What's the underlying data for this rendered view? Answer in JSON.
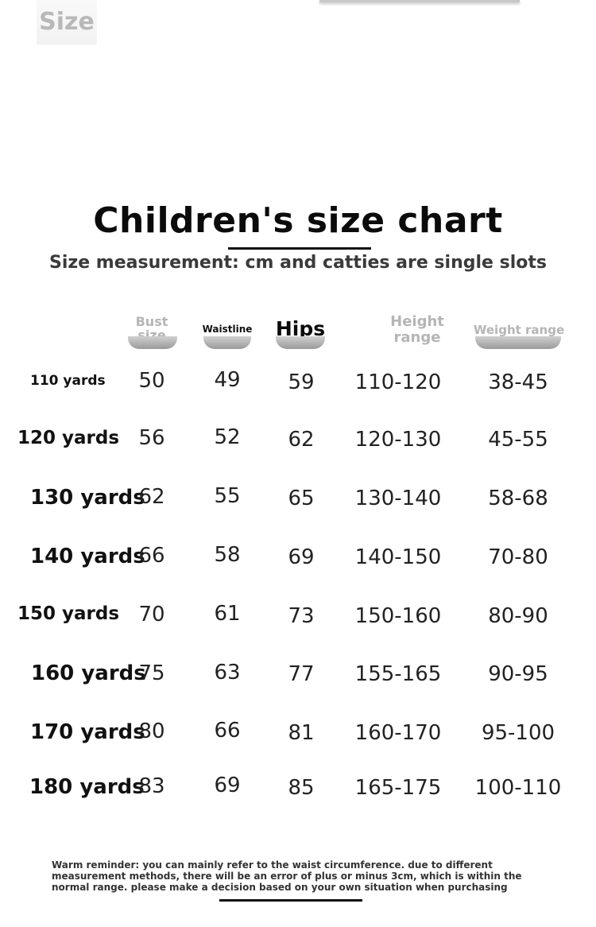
{
  "title": "Children's size chart",
  "subtitle": "Size measurement: cm and catties are single slots",
  "headers": {
    "size": "Size",
    "bust_line1": "Bust",
    "bust_line2": "size",
    "waistline": "Waistline",
    "hips": "Hips",
    "height_line1": "Height",
    "height_line2": "range",
    "weight": "Weight range"
  },
  "rows": [
    {
      "size": "110 yards",
      "bust": "50",
      "waist": "49",
      "hips": "59",
      "height": "110-120",
      "weight": "38-45"
    },
    {
      "size": "120 yards",
      "bust": "56",
      "waist": "52",
      "hips": "62",
      "height": "120-130",
      "weight": "45-55"
    },
    {
      "size": "130 yards",
      "bust": "62",
      "waist": "55",
      "hips": "65",
      "height": "130-140",
      "weight": "58-68"
    },
    {
      "size": "140 yards",
      "bust": "66",
      "waist": "58",
      "hips": "69",
      "height": "140-150",
      "weight": "70-80"
    },
    {
      "size": "150 yards",
      "bust": "70",
      "waist": "61",
      "hips": "73",
      "height": "150-160",
      "weight": "80-90"
    },
    {
      "size": "160 yards",
      "bust": "75",
      "waist": "63",
      "hips": "77",
      "height": "155-165",
      "weight": "90-95"
    },
    {
      "size": "170 yards",
      "bust": "80",
      "waist": "66",
      "hips": "81",
      "height": "160-170",
      "weight": "95-100"
    },
    {
      "size": "180 yards",
      "bust": "83",
      "waist": "69",
      "hips": "85",
      "height": "165-175",
      "weight": "100-110"
    }
  ],
  "footer_note": "Warm reminder: you can mainly refer to the waist circumference. due to different measurement methods, there will be an error of plus or minus 3cm, which is within the normal range. please make a decision based on your own situation when purchasing"
}
